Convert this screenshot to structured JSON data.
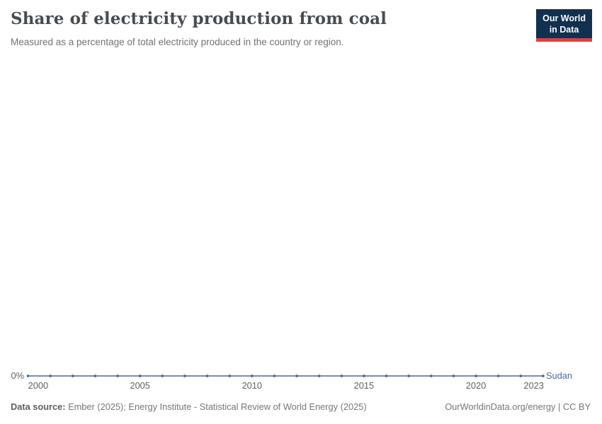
{
  "header": {
    "title": "Share of electricity production from coal",
    "subtitle": "Measured as a percentage of total electricity produced in the country or region.",
    "logo": {
      "line1": "Our World",
      "line2": "in Data"
    }
  },
  "chart_data": {
    "type": "line",
    "title": "Share of electricity production from coal",
    "subtitle": "Measured as a percentage of total electricity produced in the country or region.",
    "x": [
      2000,
      2001,
      2002,
      2003,
      2004,
      2005,
      2006,
      2007,
      2008,
      2009,
      2010,
      2011,
      2012,
      2013,
      2014,
      2015,
      2016,
      2017,
      2018,
      2019,
      2020,
      2021,
      2022,
      2023
    ],
    "series": [
      {
        "name": "Sudan",
        "color": "#4c6a9c",
        "values": [
          0,
          0,
          0,
          0,
          0,
          0,
          0,
          0,
          0,
          0,
          0,
          0,
          0,
          0,
          0,
          0,
          0,
          0,
          0,
          0,
          0,
          0,
          0,
          0
        ]
      }
    ],
    "x_ticks": [
      2000,
      2005,
      2010,
      2015,
      2020,
      2023
    ],
    "y_ticks": [
      {
        "value": 0,
        "label": "0%"
      }
    ],
    "grid": false,
    "legend_position": "end-of-line",
    "xlabel": "",
    "ylabel": ""
  },
  "footer": {
    "source_label": "Data source:",
    "source_text": " Ember (2025); Energy Institute - Statistical Review of World Energy (2025)",
    "link_text": "OurWorldinData.org/energy | CC BY"
  },
  "colors": {
    "line": "#4c6a9c",
    "title_text": "#474c51",
    "muted_text": "#727272",
    "axis_text": "#606060",
    "logo_background": "#12304f",
    "logo_accent": "#e03e3e"
  }
}
